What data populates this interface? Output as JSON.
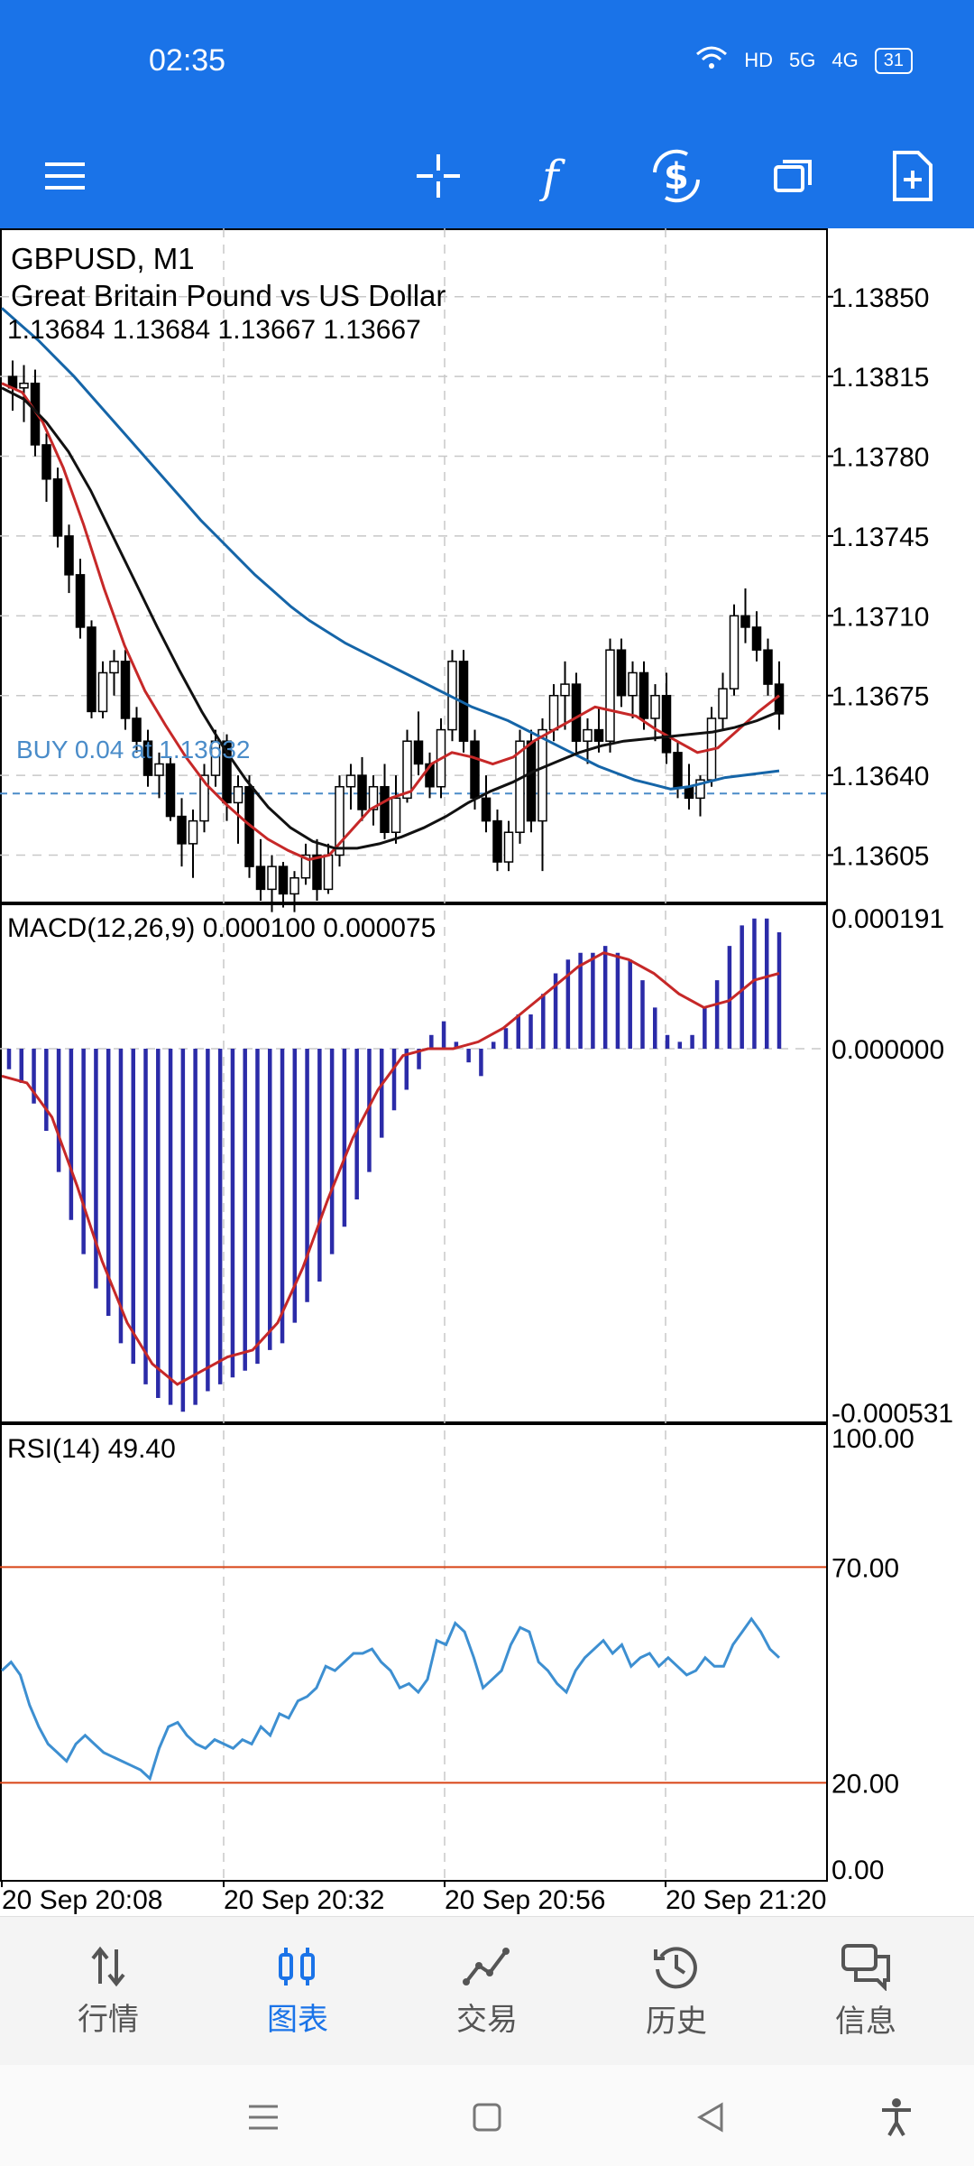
{
  "status": {
    "time": "02:35",
    "battery": "31",
    "hd_label": "HD",
    "net1": "5G",
    "net2": "4G"
  },
  "chart": {
    "symbol_line": "GBPUSD, M1",
    "description": "Great Britain Pound vs US Dollar",
    "ohlc_line": "1.13684 1.13684 1.13667 1.13667",
    "buy_label": "BUY 0.04 at 1.13632",
    "price_ticks": [
      "1.13850",
      "1.13815",
      "1.13780",
      "1.13745",
      "1.13710",
      "1.13675",
      "1.13640",
      "1.13605"
    ],
    "macd_label": "MACD(12,26,9) 0.000100 0.000075",
    "macd_ticks": [
      "0.000191",
      "0.000000",
      "-0.000531"
    ],
    "rsi_label": "RSI(14) 49.40",
    "rsi_ticks": [
      "100.00",
      "70.00",
      "20.00",
      "0.00"
    ],
    "time_ticks": [
      "20 Sep 20:08",
      "20 Sep 20:32",
      "20 Sep 20:56",
      "20 Sep 21:20"
    ]
  },
  "chart_data": {
    "type": "line",
    "title": "GBPUSD, M1",
    "price_range": [
      1.13585,
      1.1388
    ],
    "macd_range": [
      -0.000531,
      0.000191
    ],
    "rsi_range": [
      0,
      100
    ],
    "rsi_levels": [
      70,
      20
    ],
    "buy_price": 1.13632,
    "time_labels": [
      "20 Sep 20:08",
      "20 Sep 20:32",
      "20 Sep 20:56",
      "20 Sep 21:20"
    ],
    "candles": [
      [
        1.13815,
        1.13822,
        1.138,
        1.1381
      ],
      [
        1.1381,
        1.1382,
        1.13795,
        1.13812
      ],
      [
        1.13812,
        1.13818,
        1.1378,
        1.13785
      ],
      [
        1.13785,
        1.1379,
        1.1376,
        1.1377
      ],
      [
        1.1377,
        1.13775,
        1.1374,
        1.13745
      ],
      [
        1.13745,
        1.1375,
        1.1372,
        1.13728
      ],
      [
        1.13728,
        1.13735,
        1.137,
        1.13705
      ],
      [
        1.13705,
        1.13708,
        1.13665,
        1.13668
      ],
      [
        1.13668,
        1.1369,
        1.13665,
        1.13685
      ],
      [
        1.13685,
        1.13695,
        1.13675,
        1.1369
      ],
      [
        1.1369,
        1.13695,
        1.1366,
        1.13665
      ],
      [
        1.13665,
        1.1367,
        1.1365,
        1.13655
      ],
      [
        1.13655,
        1.1366,
        1.13635,
        1.1364
      ],
      [
        1.1364,
        1.1365,
        1.1363,
        1.13645
      ],
      [
        1.13645,
        1.13648,
        1.1362,
        1.13622
      ],
      [
        1.13622,
        1.1363,
        1.136,
        1.1361
      ],
      [
        1.1361,
        1.13625,
        1.13595,
        1.1362
      ],
      [
        1.1362,
        1.13645,
        1.13615,
        1.1364
      ],
      [
        1.1364,
        1.1366,
        1.13635,
        1.13655
      ],
      [
        1.13655,
        1.13658,
        1.1362,
        1.13628
      ],
      [
        1.13628,
        1.1364,
        1.1361,
        1.13635
      ],
      [
        1.13635,
        1.1364,
        1.13595,
        1.136
      ],
      [
        1.136,
        1.13612,
        1.13585,
        1.1359
      ],
      [
        1.1359,
        1.13605,
        1.1358,
        1.136
      ],
      [
        1.136,
        1.13602,
        1.13582,
        1.13588
      ],
      [
        1.13588,
        1.13598,
        1.1358,
        1.13595
      ],
      [
        1.13595,
        1.1361,
        1.13592,
        1.13605
      ],
      [
        1.13605,
        1.13612,
        1.13585,
        1.1359
      ],
      [
        1.1359,
        1.1361,
        1.13588,
        1.13605
      ],
      [
        1.13605,
        1.1364,
        1.136,
        1.13635
      ],
      [
        1.13635,
        1.13645,
        1.13625,
        1.1364
      ],
      [
        1.1364,
        1.13648,
        1.1362,
        1.13625
      ],
      [
        1.13625,
        1.1364,
        1.13618,
        1.13635
      ],
      [
        1.13635,
        1.13645,
        1.13612,
        1.13615
      ],
      [
        1.13615,
        1.1364,
        1.1361,
        1.1363
      ],
      [
        1.1363,
        1.1366,
        1.13628,
        1.13655
      ],
      [
        1.13655,
        1.13668,
        1.1364,
        1.13645
      ],
      [
        1.13645,
        1.1365,
        1.1363,
        1.13635
      ],
      [
        1.13635,
        1.13665,
        1.1363,
        1.1366
      ],
      [
        1.1366,
        1.13695,
        1.13655,
        1.1369
      ],
      [
        1.1369,
        1.13695,
        1.1365,
        1.13655
      ],
      [
        1.13655,
        1.1366,
        1.13625,
        1.1363
      ],
      [
        1.1363,
        1.1364,
        1.13615,
        1.1362
      ],
      [
        1.1362,
        1.13625,
        1.13598,
        1.13602
      ],
      [
        1.13602,
        1.1362,
        1.13598,
        1.13615
      ],
      [
        1.13615,
        1.1366,
        1.1361,
        1.13655
      ],
      [
        1.13655,
        1.1366,
        1.13615,
        1.1362
      ],
      [
        1.1362,
        1.13665,
        1.13598,
        1.1366
      ],
      [
        1.1366,
        1.1368,
        1.13655,
        1.13675
      ],
      [
        1.13675,
        1.1369,
        1.1366,
        1.1368
      ],
      [
        1.1368,
        1.13685,
        1.1365,
        1.13655
      ],
      [
        1.13655,
        1.13665,
        1.13645,
        1.1366
      ],
      [
        1.1366,
        1.1367,
        1.1365,
        1.13655
      ],
      [
        1.13655,
        1.137,
        1.1365,
        1.13695
      ],
      [
        1.13695,
        1.137,
        1.1367,
        1.13675
      ],
      [
        1.13675,
        1.1369,
        1.13665,
        1.13685
      ],
      [
        1.13685,
        1.1369,
        1.1366,
        1.13665
      ],
      [
        1.13665,
        1.1368,
        1.13655,
        1.13675
      ],
      [
        1.13675,
        1.13685,
        1.13645,
        1.1365
      ],
      [
        1.1365,
        1.13655,
        1.1363,
        1.13635
      ],
      [
        1.13635,
        1.13645,
        1.13625,
        1.1363
      ],
      [
        1.1363,
        1.1364,
        1.13622,
        1.13638
      ],
      [
        1.13638,
        1.1367,
        1.13635,
        1.13665
      ],
      [
        1.13665,
        1.13685,
        1.1366,
        1.13678
      ],
      [
        1.13678,
        1.13715,
        1.13675,
        1.1371
      ],
      [
        1.1371,
        1.13722,
        1.13698,
        1.13705
      ],
      [
        1.13705,
        1.13712,
        1.1369,
        1.13695
      ],
      [
        1.13695,
        1.137,
        1.13675,
        1.1368
      ],
      [
        1.1368,
        1.1369,
        1.1366,
        1.13667
      ]
    ],
    "series": [
      {
        "color": "#1565a8",
        "values": [
          1.13845,
          1.13838,
          1.13831,
          1.13823,
          1.13815,
          1.13806,
          1.13797,
          1.13788,
          1.13779,
          1.1377,
          1.13761,
          1.13752,
          1.13744,
          1.13736,
          1.13728,
          1.13721,
          1.13714,
          1.13708,
          1.13703,
          1.13698,
          1.13694,
          1.1369,
          1.13686,
          1.13682,
          1.13678,
          1.13674,
          1.1367,
          1.13667,
          1.13664,
          1.1366,
          1.13656,
          1.13652,
          1.13648,
          1.13644,
          1.13641,
          1.13638,
          1.13636,
          1.13634,
          1.13635,
          1.13637,
          1.13639,
          1.1364,
          1.13641,
          1.13642
        ]
      },
      {
        "color": "#c62828",
        "values": [
          1.13812,
          1.13808,
          1.13795,
          1.13775,
          1.1375,
          1.13722,
          1.13697,
          1.13677,
          1.13662,
          1.13648,
          1.13636,
          1.13627,
          1.13619,
          1.13612,
          1.13607,
          1.13603,
          1.13605,
          1.13615,
          1.13625,
          1.1363,
          1.13633,
          1.13645,
          1.1365,
          1.13648,
          1.13645,
          1.13648,
          1.13655,
          1.1366,
          1.13665,
          1.1367,
          1.13668,
          1.13666,
          1.1366,
          1.13655,
          1.1365,
          1.13652,
          1.1366,
          1.13668,
          1.13675
        ]
      },
      {
        "color": "#111111",
        "values": [
          1.1381,
          1.13805,
          1.13795,
          1.13782,
          1.13765,
          1.13745,
          1.13725,
          1.13705,
          1.13686,
          1.13668,
          1.13652,
          1.13638,
          1.13626,
          1.13617,
          1.13611,
          1.13608,
          1.13608,
          1.1361,
          1.13613,
          1.13617,
          1.13622,
          1.13628,
          1.13633,
          1.13637,
          1.13642,
          1.13646,
          1.1365,
          1.13653,
          1.13655,
          1.13656,
          1.13657,
          1.13658,
          1.13659,
          1.13661,
          1.13664,
          1.13668
        ]
      }
    ],
    "macd_hist": [
      -3e-05,
      -5e-05,
      -8e-05,
      -0.00012,
      -0.00018,
      -0.00025,
      -0.0003,
      -0.00035,
      -0.00039,
      -0.00043,
      -0.00046,
      -0.00049,
      -0.00051,
      -0.00052,
      -0.00053,
      -0.00052,
      -0.0005,
      -0.00049,
      -0.00048,
      -0.00047,
      -0.00046,
      -0.00044,
      -0.00043,
      -0.0004,
      -0.00037,
      -0.00034,
      -0.0003,
      -0.00026,
      -0.00022,
      -0.00018,
      -0.00013,
      -9e-05,
      -6e-05,
      -3e-05,
      2e-05,
      4e-05,
      1e-05,
      -2e-05,
      -4e-05,
      1e-05,
      3e-05,
      5e-05,
      5e-05,
      8e-05,
      0.00011,
      0.00013,
      0.00014,
      0.00014,
      0.00015,
      0.00014,
      0.00013,
      0.0001,
      6e-05,
      2e-05,
      1e-05,
      2e-05,
      6e-05,
      0.0001,
      0.00015,
      0.00018,
      0.00019,
      0.00019,
      0.00017
    ],
    "macd_signal": [
      -4e-05,
      -5e-05,
      -0.0001,
      -0.0002,
      -0.00031,
      -0.0004,
      -0.00046,
      -0.00049,
      -0.00047,
      -0.00045,
      -0.00044,
      -0.0004,
      -0.00032,
      -0.00022,
      -0.00013,
      -6e-05,
      -1e-05,
      0.0,
      0.0,
      1e-05,
      3e-05,
      6e-05,
      9e-05,
      0.00012,
      0.00014,
      0.00013,
      0.00011,
      8e-05,
      6e-05,
      7e-05,
      0.0001,
      0.00011
    ],
    "rsi": [
      46,
      48,
      45,
      38,
      33,
      29,
      27,
      25,
      29,
      31,
      29,
      27,
      26,
      25,
      24,
      23,
      21,
      28,
      33,
      34,
      31,
      29,
      28,
      30,
      29,
      28,
      30,
      29,
      33,
      31,
      36,
      35,
      39,
      40,
      42,
      47,
      46,
      48,
      50,
      50,
      51,
      48,
      46,
      42,
      43,
      41,
      44,
      53,
      52,
      57,
      55,
      49,
      42,
      44,
      46,
      52,
      56,
      55,
      48,
      46,
      43,
      41,
      46,
      49,
      51,
      53,
      50,
      52,
      47,
      49,
      50,
      47,
      49,
      47,
      45,
      46,
      49,
      47,
      47,
      52,
      55,
      58,
      55,
      51,
      49
    ]
  },
  "nav": {
    "quotes": "行情",
    "chart": "图表",
    "trade": "交易",
    "history": "历史",
    "messages": "信息"
  }
}
